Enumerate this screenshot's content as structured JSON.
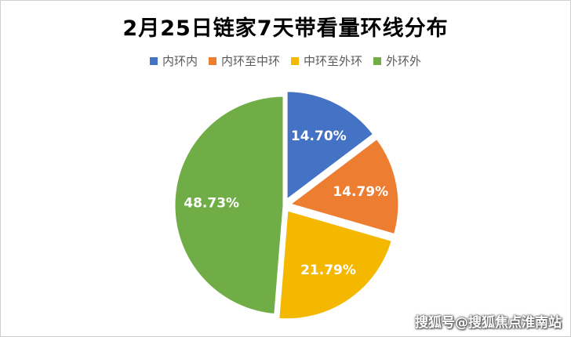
{
  "chart_data": {
    "type": "pie",
    "title": "2月25日链家7天带看量环线分布",
    "categories": [
      "内环内",
      "内环至中环",
      "中环至外环",
      "外环外"
    ],
    "values": [
      14.7,
      14.79,
      21.79,
      48.73
    ],
    "labels": [
      "14.70%",
      "14.79%",
      "21.79%",
      "48.73%"
    ],
    "colors": [
      "#4472C4",
      "#ED7D31",
      "#F5B800",
      "#70AD47"
    ],
    "legend_position": "top",
    "exploded": true
  },
  "watermark": "搜狐号@搜狐焦点淮南站"
}
